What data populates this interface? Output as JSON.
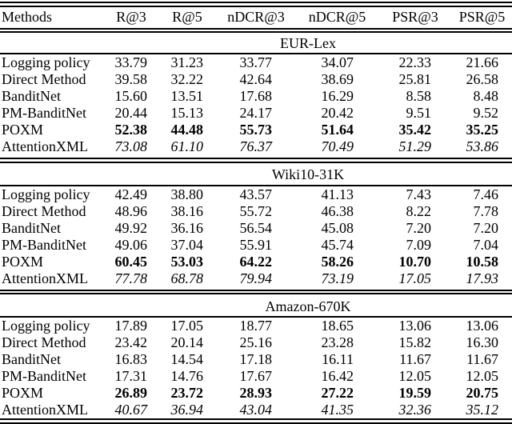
{
  "table": {
    "background_color": "#ffffff",
    "text_color": "#000000",
    "columns": {
      "methods": "Methods",
      "r3": "R@3",
      "r5": "R@5",
      "ndcr3": "nDCR@3",
      "ndcr5": "nDCR@5",
      "psr3": "PSR@3",
      "psr5": "PSR@5"
    },
    "sections": [
      {
        "title": "EUR-Lex",
        "rows": [
          {
            "method": "Logging policy",
            "emphasis": "none",
            "values": [
              "33.79",
              "31.23",
              "33.77",
              "34.07",
              "22.33",
              "21.66"
            ]
          },
          {
            "method": "Direct Method",
            "emphasis": "none",
            "values": [
              "39.58",
              "32.22",
              "42.64",
              "38.69",
              "25.81",
              "26.58"
            ]
          },
          {
            "method": "BanditNet",
            "emphasis": "none",
            "values": [
              "15.60",
              "13.51",
              "17.68",
              "16.29",
              "8.58",
              "8.48"
            ]
          },
          {
            "method": "PM-BanditNet",
            "emphasis": "none",
            "values": [
              "20.44",
              "15.13",
              "24.17",
              "20.42",
              "9.51",
              "9.52"
            ]
          },
          {
            "method": "POXM",
            "emphasis": "bold",
            "values": [
              "52.38",
              "44.48",
              "55.73",
              "51.64",
              "35.42",
              "35.25"
            ]
          },
          {
            "method": "AttentionXML",
            "emphasis": "italic",
            "values": [
              "73.08",
              "61.10",
              "76.37",
              "70.49",
              "51.29",
              "53.86"
            ]
          }
        ]
      },
      {
        "title": "Wiki10-31K",
        "rows": [
          {
            "method": "Logging policy",
            "emphasis": "none",
            "values": [
              "42.49",
              "38.80",
              "43.57",
              "41.13",
              "7.43",
              "7.46"
            ]
          },
          {
            "method": "Direct Method",
            "emphasis": "none",
            "values": [
              "48.96",
              "38.16",
              "55.72",
              "46.38",
              "8.22",
              "7.78"
            ]
          },
          {
            "method": "BanditNet",
            "emphasis": "none",
            "values": [
              "49.92",
              "36.16",
              "56.54",
              "45.08",
              "7.20",
              "7.20"
            ]
          },
          {
            "method": "PM-BanditNet",
            "emphasis": "none",
            "values": [
              "49.06",
              "37.04",
              "55.91",
              "45.74",
              "7.09",
              "7.04"
            ]
          },
          {
            "method": "POXM",
            "emphasis": "bold",
            "values": [
              "60.45",
              "53.03",
              "64.22",
              "58.26",
              "10.70",
              "10.58"
            ]
          },
          {
            "method": "AttentionXML",
            "emphasis": "italic",
            "values": [
              "77.78",
              "68.78",
              "79.94",
              "73.19",
              "17.05",
              "17.93"
            ]
          }
        ]
      },
      {
        "title": "Amazon-670K",
        "rows": [
          {
            "method": "Logging policy",
            "emphasis": "none",
            "values": [
              "17.89",
              "17.05",
              "18.77",
              "18.65",
              "13.06",
              "13.06"
            ]
          },
          {
            "method": "Direct Method",
            "emphasis": "none",
            "values": [
              "23.42",
              "20.14",
              "25.16",
              "23.28",
              "15.82",
              "16.30"
            ]
          },
          {
            "method": "BanditNet",
            "emphasis": "none",
            "values": [
              "16.83",
              "14.54",
              "17.18",
              "16.11",
              "11.67",
              "11.67"
            ]
          },
          {
            "method": "PM-BanditNet",
            "emphasis": "none",
            "values": [
              "17.31",
              "14.76",
              "17.67",
              "16.42",
              "12.05",
              "12.05"
            ]
          },
          {
            "method": "POXM",
            "emphasis": "bold",
            "values": [
              "26.89",
              "23.72",
              "28.93",
              "27.22",
              "19.59",
              "20.75"
            ]
          },
          {
            "method": "AttentionXML",
            "emphasis": "italic",
            "values": [
              "40.67",
              "36.94",
              "43.04",
              "41.35",
              "32.36",
              "35.12"
            ]
          }
        ]
      }
    ]
  }
}
